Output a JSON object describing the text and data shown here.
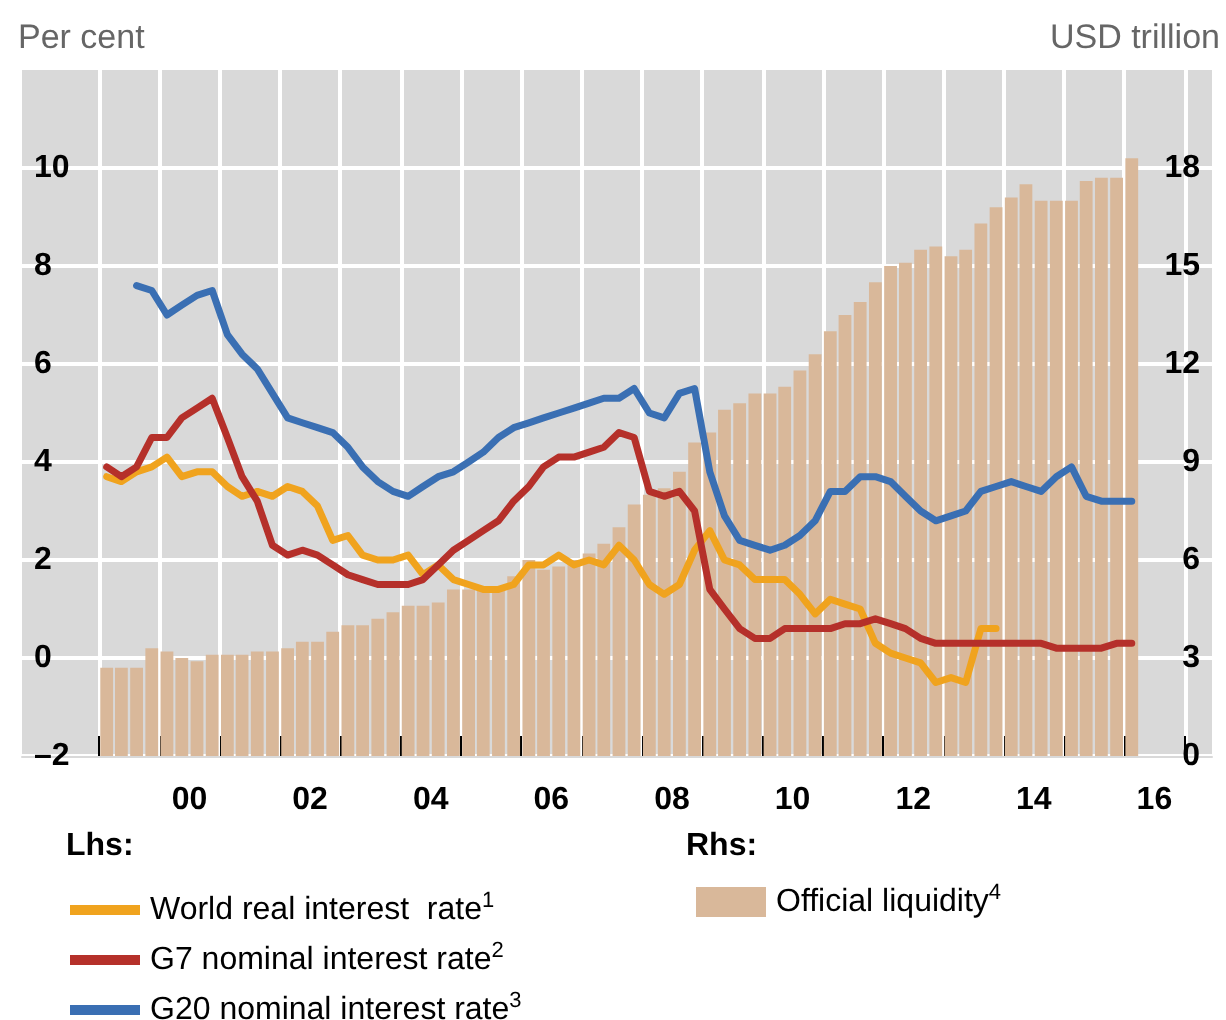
{
  "chart_data": {
    "type": "line",
    "ylabel": "Per cent",
    "y2label": "USD trillion",
    "x": [
      "1999-02-15",
      "1999-05-15",
      "1999-08-15",
      "1999-11-15",
      "2000-02-15",
      "2000-05-15",
      "2000-08-15",
      "2000-11-15",
      "2001-02-15",
      "2001-05-15",
      "2001-08-15",
      "2001-11-15",
      "2002-02-15",
      "2002-05-15",
      "2002-08-15",
      "2002-11-15",
      "2003-02-15",
      "2003-05-15",
      "2003-08-15",
      "2003-11-15",
      "2004-02-15",
      "2004-05-15",
      "2004-08-15",
      "2004-11-15",
      "2005-02-15",
      "2005-05-15",
      "2005-08-15",
      "2005-11-15",
      "2006-02-15",
      "2006-05-15",
      "2006-08-15",
      "2006-11-15",
      "2007-02-15",
      "2007-05-15",
      "2007-08-15",
      "2007-11-15",
      "2008-02-15",
      "2008-05-15",
      "2008-08-15",
      "2008-11-15",
      "2009-02-15",
      "2009-05-15",
      "2009-08-15",
      "2009-11-15",
      "2010-02-15",
      "2010-05-15",
      "2010-08-15",
      "2010-11-15",
      "2011-02-15",
      "2011-05-15",
      "2011-08-15",
      "2011-11-15",
      "2012-02-15",
      "2012-05-15",
      "2012-08-15",
      "2012-11-15",
      "2013-02-15",
      "2013-05-15",
      "2013-08-15",
      "2013-11-15",
      "2014-02-15",
      "2014-05-15",
      "2014-08-15",
      "2014-11-15",
      "2015-02-15",
      "2015-05-15",
      "2015-08-15",
      "2015-11-15",
      "2016-02-15"
    ],
    "series": [
      {
        "name": "Official liquidity$^{4}$",
        "type": "bar",
        "axis": "y2",
        "color": "#d9b89a",
        "values": [
          2.7,
          2.7,
          2.7,
          3.3,
          3.2,
          3.0,
          2.9,
          3.1,
          3.1,
          3.1,
          3.2,
          3.2,
          3.3,
          3.5,
          3.5,
          3.8,
          4.0,
          4.0,
          4.2,
          4.4,
          4.6,
          4.6,
          4.7,
          5.1,
          5.1,
          5.1,
          5.1,
          5.5,
          6.0,
          5.7,
          5.8,
          6.0,
          6.2,
          6.5,
          7.0,
          7.7,
          8.0,
          8.2,
          8.7,
          9.6,
          9.9,
          10.6,
          10.8,
          11.1,
          11.1,
          11.3,
          11.8,
          12.3,
          13.0,
          13.5,
          13.9,
          14.5,
          15.0,
          15.1,
          15.5,
          15.6,
          15.3,
          15.5,
          16.3,
          16.8,
          17.1,
          17.5,
          17.0,
          17.0,
          17.0,
          17.6,
          17.7,
          17.7,
          18.3
        ]
      },
      {
        "name": "World real interest  rate$^{1}$",
        "color": "#f0a31e",
        "values": [
          3.7,
          3.6,
          3.8,
          3.9,
          4.1,
          3.7,
          3.8,
          3.8,
          3.5,
          3.3,
          3.4,
          3.3,
          3.5,
          3.4,
          3.1,
          2.4,
          2.5,
          2.1,
          2.0,
          2.0,
          2.1,
          1.7,
          1.9,
          1.6,
          1.5,
          1.4,
          1.4,
          1.5,
          1.9,
          1.9,
          2.1,
          1.9,
          2.0,
          1.9,
          2.3,
          2.0,
          1.5,
          1.3,
          1.5,
          2.2,
          2.6,
          2.0,
          1.9,
          1.6,
          1.6,
          1.6,
          1.3,
          0.9,
          1.2,
          1.1,
          1.0,
          0.3,
          0.1,
          0.0,
          -0.1,
          -0.5,
          -0.4,
          -0.5,
          0.6,
          0.6,
          null,
          null,
          null,
          null,
          null,
          null,
          null,
          null,
          null
        ]
      },
      {
        "name": "G7 nominal interest rate$^{2}$",
        "color": "#b5302a",
        "values": [
          3.9,
          3.7,
          3.9,
          4.5,
          4.5,
          4.9,
          5.1,
          5.3,
          4.5,
          3.7,
          3.2,
          2.3,
          2.1,
          2.2,
          2.1,
          1.9,
          1.7,
          1.6,
          1.5,
          1.5,
          1.5,
          1.6,
          1.9,
          2.2,
          2.4,
          2.6,
          2.8,
          3.2,
          3.5,
          3.9,
          4.1,
          4.1,
          4.2,
          4.3,
          4.6,
          4.5,
          3.4,
          3.3,
          3.4,
          3.0,
          1.4,
          1.0,
          0.6,
          0.4,
          0.4,
          0.6,
          0.6,
          0.6,
          0.6,
          0.7,
          0.7,
          0.8,
          0.7,
          0.6,
          0.4,
          0.3,
          0.3,
          0.3,
          0.3,
          0.3,
          0.3,
          0.3,
          0.3,
          0.2,
          0.2,
          0.2,
          0.2,
          0.3,
          0.3
        ]
      },
      {
        "name": "G20 nominal interest rate$^{3}$",
        "color": "#3a6fb3",
        "values": [
          null,
          null,
          7.6,
          7.5,
          7.0,
          7.2,
          7.4,
          7.5,
          6.6,
          6.2,
          5.9,
          5.4,
          4.9,
          4.8,
          4.7,
          4.6,
          4.3,
          3.9,
          3.6,
          3.4,
          3.3,
          3.5,
          3.7,
          3.8,
          4.0,
          4.2,
          4.5,
          4.7,
          4.8,
          4.9,
          5.0,
          5.1,
          5.2,
          5.3,
          5.3,
          5.5,
          5.0,
          4.9,
          5.4,
          5.5,
          3.8,
          2.9,
          2.4,
          2.3,
          2.2,
          2.3,
          2.5,
          2.8,
          3.4,
          3.4,
          3.7,
          3.7,
          3.6,
          3.3,
          3.0,
          2.8,
          2.9,
          3.0,
          3.4,
          3.5,
          3.6,
          3.5,
          3.4,
          3.7,
          3.9,
          3.3,
          3.2,
          3.2,
          3.2
        ]
      }
    ],
    "xlim": [
      "1997-09-20",
      "2017-06-15"
    ],
    "xticks": [
      {
        "value": "2000-07-01",
        "label": "00"
      },
      {
        "value": "2002-07-01",
        "label": "02"
      },
      {
        "value": "2004-07-01",
        "label": "04"
      },
      {
        "value": "2006-07-01",
        "label": "06"
      },
      {
        "value": "2008-07-01",
        "label": "08"
      },
      {
        "value": "2010-07-01",
        "label": "10"
      },
      {
        "value": "2012-07-01",
        "label": "12"
      },
      {
        "value": "2014-07-01",
        "label": "14"
      },
      {
        "value": "2016-07-01",
        "label": "16"
      },
      {
        "value": "1999-01-01",
        "label": null
      },
      {
        "value": "2000-01-01",
        "label": null
      },
      {
        "value": "2001-01-01",
        "label": null
      },
      {
        "value": "2002-01-01",
        "label": null
      },
      {
        "value": "2003-01-01",
        "label": null
      },
      {
        "value": "2004-01-01",
        "label": null
      },
      {
        "value": "2005-01-01",
        "label": null
      },
      {
        "value": "2006-01-01",
        "label": null
      },
      {
        "value": "2007-01-01",
        "label": null
      },
      {
        "value": "2008-01-01",
        "label": null
      },
      {
        "value": "2009-01-01",
        "label": null
      },
      {
        "value": "2010-01-01",
        "label": null
      },
      {
        "value": "2011-01-01",
        "label": null
      },
      {
        "value": "2012-01-01",
        "label": null
      },
      {
        "value": "2013-01-01",
        "label": null
      },
      {
        "value": "2014-01-01",
        "label": null
      },
      {
        "value": "2015-01-01",
        "label": null
      },
      {
        "value": "2016-01-01",
        "label": null
      },
      {
        "value": "2017-01-01",
        "label": null
      }
    ],
    "ylim": [
      -2,
      12
    ],
    "yticks": [
      {
        "value": -2,
        "label": "–2"
      },
      0,
      2,
      4,
      6,
      8,
      10
    ],
    "y2lim": [
      0,
      21
    ],
    "y2ticks": [
      0,
      3,
      6,
      9,
      12,
      15,
      18
    ],
    "annotations": [
      "Lhs:",
      "Rhs:"
    ],
    "grid": true,
    "legend": "bottom",
    "marker": "none",
    "line_style": "solid"
  }
}
